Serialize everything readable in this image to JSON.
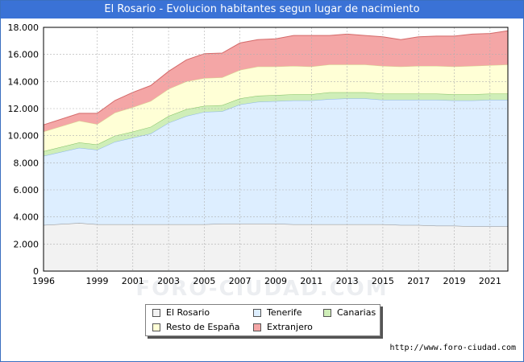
{
  "header": {
    "title": "El Rosario - Evolucion habitantes segun lugar de nacimiento"
  },
  "watermark": "FORO-CIUDAD.COM",
  "credit": "http://www.foro-ciudad.com",
  "chart_data": {
    "type": "area",
    "stacked": true,
    "title": "El Rosario - Evolucion habitantes segun lugar de nacimiento",
    "xlabel": "",
    "ylabel": "",
    "xlim": [
      1996,
      2022
    ],
    "ylim": [
      0,
      18000
    ],
    "x_ticks": [
      1996,
      1999,
      2001,
      2003,
      2005,
      2007,
      2009,
      2011,
      2013,
      2015,
      2017,
      2019,
      2021
    ],
    "y_ticks": [
      0,
      2000,
      4000,
      6000,
      8000,
      10000,
      12000,
      14000,
      16000,
      18000
    ],
    "y_tick_labels": [
      "0",
      "2.000",
      "4.000",
      "6.000",
      "8.000",
      "10.000",
      "12.000",
      "14.000",
      "16.000",
      "18.000"
    ],
    "grid": true,
    "legend_position": "bottom-center",
    "x": [
      1996,
      1998,
      1999,
      2000,
      2001,
      2002,
      2003,
      2004,
      2005,
      2006,
      2007,
      2008,
      2009,
      2010,
      2011,
      2012,
      2013,
      2014,
      2015,
      2016,
      2017,
      2018,
      2019,
      2020,
      2021,
      2022
    ],
    "series": [
      {
        "name": "El Rosario",
        "color": "#f2f2f2",
        "values": [
          3400,
          3550,
          3450,
          3450,
          3450,
          3450,
          3450,
          3450,
          3450,
          3500,
          3500,
          3500,
          3500,
          3450,
          3450,
          3450,
          3450,
          3450,
          3450,
          3400,
          3400,
          3350,
          3350,
          3300,
          3300,
          3300
        ]
      },
      {
        "name": "Tenerife",
        "color": "#ddeeff",
        "values": [
          5100,
          5550,
          5500,
          6100,
          6400,
          6700,
          7500,
          8000,
          8300,
          8300,
          8800,
          9000,
          9050,
          9150,
          9150,
          9250,
          9300,
          9300,
          9200,
          9250,
          9250,
          9300,
          9250,
          9300,
          9350,
          9350
        ]
      },
      {
        "name": "Canarias",
        "color": "#cfeeb8",
        "values": [
          350,
          400,
          400,
          450,
          450,
          500,
          500,
          500,
          450,
          450,
          450,
          450,
          450,
          450,
          450,
          500,
          450,
          450,
          450,
          450,
          450,
          450,
          450,
          450,
          450,
          450
        ]
      },
      {
        "name": "Resto de España",
        "color": "#ffffd6",
        "values": [
          1450,
          1600,
          1500,
          1700,
          1800,
          1900,
          2000,
          2050,
          2050,
          2050,
          2100,
          2150,
          2100,
          2100,
          2050,
          2050,
          2050,
          2050,
          2050,
          2000,
          2050,
          2050,
          2050,
          2100,
          2100,
          2150
        ]
      },
      {
        "name": "Extranjero",
        "color": "#f4a6a6",
        "values": [
          500,
          550,
          800,
          900,
          1100,
          1150,
          1300,
          1600,
          1800,
          1800,
          2000,
          2000,
          2050,
          2250,
          2300,
          2150,
          2250,
          2150,
          2150,
          2000,
          2150,
          2200,
          2250,
          2350,
          2350,
          2500
        ]
      }
    ]
  }
}
